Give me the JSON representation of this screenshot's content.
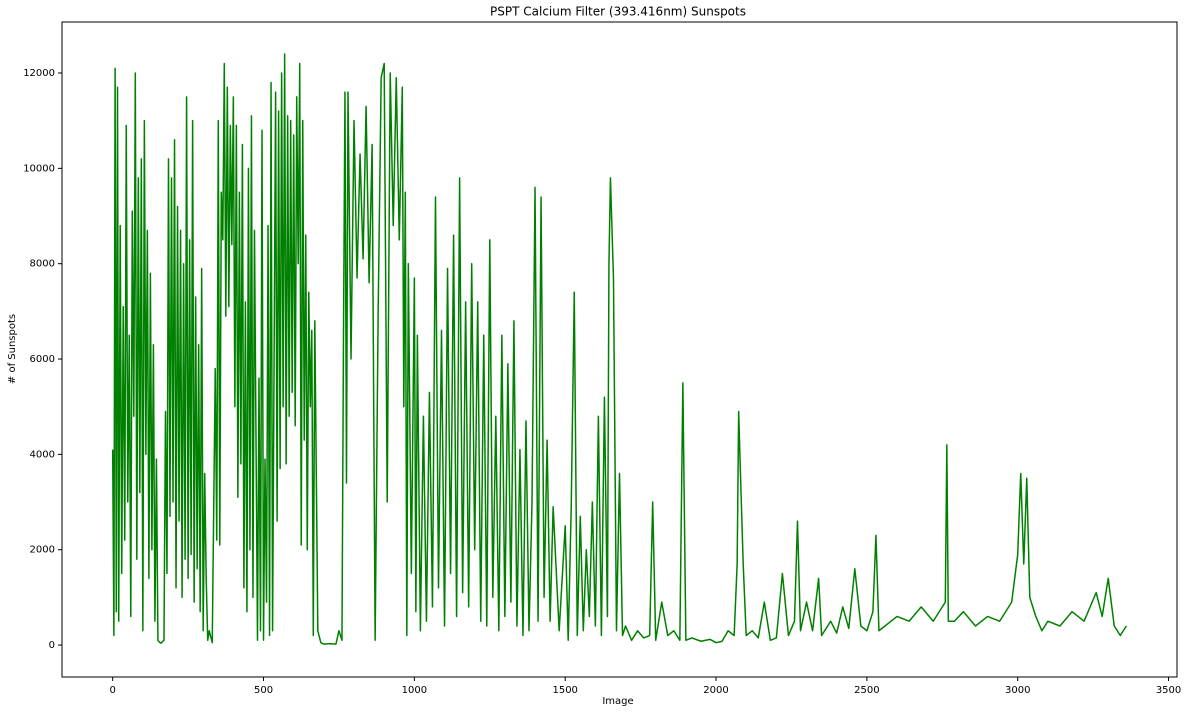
{
  "chart_data": {
    "type": "line",
    "title": "PSPT Calcium Filter (393.416nm) Sunspots",
    "x_label": "Image",
    "y_label": "# of Sunspots",
    "color": "#008000",
    "xlim": [
      -168,
      3528
    ],
    "ylim": [
      -670,
      13070
    ],
    "xticks": [
      0,
      500,
      1000,
      1500,
      2000,
      2500,
      3000,
      3500
    ],
    "yticks": [
      0,
      2000,
      4000,
      6000,
      8000,
      10000,
      12000
    ],
    "x": [
      0,
      4,
      8,
      12,
      16,
      20,
      25,
      30,
      35,
      40,
      45,
      50,
      55,
      60,
      65,
      70,
      75,
      80,
      85,
      90,
      95,
      100,
      105,
      110,
      115,
      120,
      125,
      130,
      135,
      140,
      145,
      150,
      155,
      160,
      170,
      175,
      180,
      185,
      190,
      195,
      200,
      205,
      210,
      215,
      220,
      225,
      230,
      235,
      240,
      245,
      250,
      255,
      260,
      265,
      270,
      275,
      280,
      285,
      290,
      295,
      300,
      305,
      310,
      315,
      320,
      330,
      340,
      345,
      350,
      355,
      360,
      365,
      370,
      375,
      380,
      385,
      390,
      395,
      400,
      405,
      410,
      415,
      420,
      425,
      430,
      435,
      440,
      445,
      450,
      455,
      460,
      465,
      470,
      480,
      485,
      490,
      495,
      500,
      505,
      510,
      515,
      520,
      525,
      530,
      540,
      545,
      550,
      555,
      560,
      565,
      570,
      575,
      580,
      585,
      590,
      595,
      600,
      605,
      610,
      615,
      620,
      625,
      630,
      635,
      640,
      645,
      650,
      655,
      660,
      665,
      670,
      680,
      690,
      700,
      720,
      740,
      750,
      760,
      765,
      770,
      775,
      780,
      790,
      800,
      810,
      820,
      830,
      840,
      850,
      860,
      870,
      880,
      890,
      900,
      910,
      920,
      930,
      940,
      950,
      960,
      965,
      970,
      975,
      980,
      990,
      1000,
      1005,
      1010,
      1020,
      1030,
      1040,
      1050,
      1060,
      1070,
      1080,
      1090,
      1100,
      1110,
      1120,
      1130,
      1140,
      1150,
      1160,
      1170,
      1180,
      1190,
      1200,
      1210,
      1220,
      1230,
      1240,
      1250,
      1260,
      1270,
      1280,
      1290,
      1300,
      1310,
      1320,
      1330,
      1340,
      1350,
      1360,
      1370,
      1380,
      1390,
      1400,
      1410,
      1420,
      1430,
      1440,
      1450,
      1460,
      1480,
      1500,
      1510,
      1520,
      1530,
      1540,
      1550,
      1560,
      1570,
      1580,
      1590,
      1600,
      1610,
      1620,
      1630,
      1640,
      1645,
      1650,
      1660,
      1670,
      1680,
      1690,
      1700,
      1720,
      1740,
      1760,
      1780,
      1790,
      1800,
      1820,
      1840,
      1860,
      1880,
      1890,
      1900,
      1920,
      1950,
      1980,
      2000,
      2020,
      2040,
      2060,
      2070,
      2075,
      2080,
      2090,
      2100,
      2120,
      2140,
      2160,
      2180,
      2200,
      2220,
      2240,
      2260,
      2270,
      2280,
      2300,
      2320,
      2340,
      2350,
      2380,
      2400,
      2420,
      2440,
      2460,
      2480,
      2500,
      2520,
      2530,
      2540,
      2560,
      2600,
      2640,
      2680,
      2720,
      2760,
      2765,
      2770,
      2790,
      2820,
      2860,
      2900,
      2940,
      2980,
      3000,
      3010,
      3020,
      3030,
      3040,
      3060,
      3080,
      3100,
      3140,
      3180,
      3220,
      3260,
      3280,
      3300,
      3320,
      3340,
      3360
    ],
    "values": [
      4100,
      200,
      12100,
      700,
      11700,
      500,
      8800,
      1500,
      7100,
      2200,
      10900,
      3000,
      6500,
      600,
      9100,
      4800,
      12000,
      1800,
      9800,
      3200,
      10200,
      300,
      11000,
      4000,
      8700,
      1400,
      7800,
      2000,
      6300,
      500,
      3900,
      100,
      60,
      40,
      100,
      4900,
      1500,
      10200,
      2700,
      9800,
      3000,
      10600,
      1200,
      9200,
      2600,
      8700,
      1000,
      8000,
      1800,
      11500,
      1400,
      8500,
      1900,
      11000,
      900,
      7300,
      1600,
      6300,
      700,
      7900,
      300,
      3600,
      1400,
      100,
      300,
      50,
      5800,
      2200,
      11000,
      2100,
      9500,
      8500,
      12200,
      6900,
      11700,
      7100,
      10900,
      8400,
      11500,
      5000,
      10900,
      3100,
      9500,
      3800,
      10500,
      1200,
      7200,
      700,
      10000,
      2000,
      11100,
      1000,
      8700,
      100,
      5600,
      300,
      10800,
      100,
      3900,
      900,
      8800,
      200,
      11800,
      300,
      11600,
      2600,
      11200,
      3700,
      12000,
      5000,
      12400,
      3800,
      11100,
      4800,
      11000,
      5300,
      10700,
      4600,
      11500,
      8000,
      12200,
      2100,
      11000,
      4300,
      8600,
      2000,
      7400,
      5000,
      6600,
      200,
      6800,
      300,
      50,
      20,
      30,
      20,
      300,
      100,
      6400,
      11600,
      3400,
      11600,
      6000,
      11000,
      7700,
      10300,
      8100,
      11300,
      7600,
      10500,
      100,
      7000,
      11900,
      12200,
      3000,
      12000,
      8800,
      11900,
      8500,
      11700,
      5000,
      9500,
      200,
      8000,
      1500,
      7700,
      700,
      6500,
      300,
      4800,
      500,
      5300,
      800,
      9400,
      1200,
      6600,
      400,
      7900,
      1500,
      8600,
      600,
      9800,
      1100,
      7200,
      800,
      8000,
      2000,
      7200,
      500,
      6500,
      400,
      8500,
      1000,
      4800,
      300,
      6500,
      600,
      5900,
      900,
      6800,
      400,
      4100,
      200,
      4700,
      300,
      3000,
      9600,
      500,
      9400,
      1000,
      4300,
      500,
      2900,
      300,
      2500,
      100,
      2900,
      7400,
      200,
      2700,
      300,
      2000,
      600,
      3000,
      400,
      4800,
      200,
      5200,
      600,
      8000,
      9800,
      7700,
      300,
      3600,
      200,
      400,
      100,
      300,
      150,
      200,
      3000,
      100,
      900,
      200,
      300,
      100,
      5500,
      100,
      150,
      80,
      120,
      50,
      80,
      300,
      200,
      1700,
      4900,
      3800,
      1700,
      200,
      300,
      150,
      900,
      100,
      150,
      1500,
      200,
      500,
      2600,
      300,
      900,
      300,
      1400,
      200,
      500,
      250,
      800,
      350,
      1600,
      400,
      300,
      700,
      2300,
      300,
      400,
      600,
      500,
      800,
      500,
      900,
      4200,
      500,
      500,
      700,
      400,
      600,
      500,
      900,
      1900,
      3600,
      1700,
      3500,
      1000,
      600,
      300,
      500,
      400,
      700,
      500,
      1100,
      600,
      1400,
      400,
      200,
      400
    ]
  }
}
